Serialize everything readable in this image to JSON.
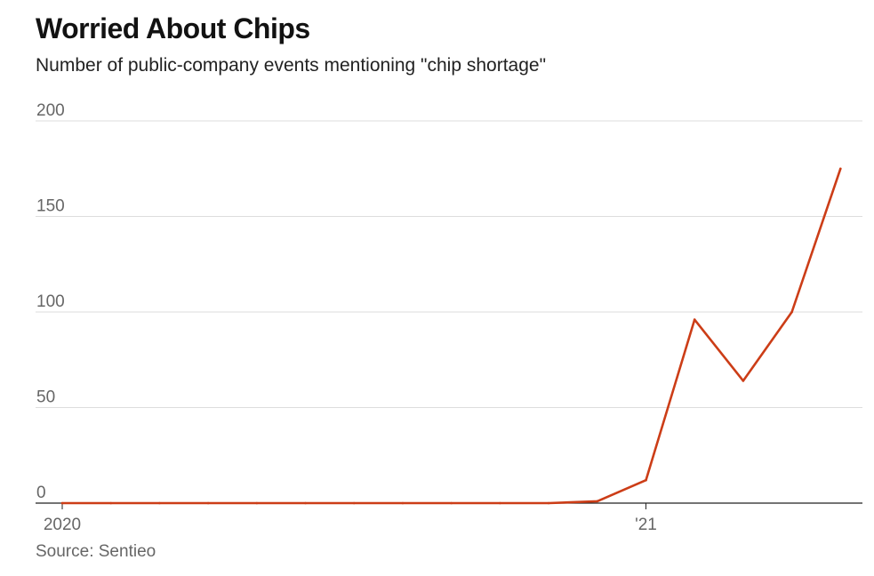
{
  "header": {
    "title": "Worried About Chips",
    "subtitle": "Number of public-company events mentioning \"chip shortage\""
  },
  "footer": {
    "source": "Source: Sentieo"
  },
  "colors": {
    "line": "#cc3d17",
    "grid": "#dddddd",
    "axis": "#222222",
    "tick_text": "#666666"
  },
  "chart_data": {
    "type": "line",
    "title": "Worried About Chips",
    "subtitle": "Number of public-company events mentioning \"chip shortage\"",
    "xlabel": "",
    "ylabel": "",
    "ylim": [
      0,
      200
    ],
    "yticks": [
      {
        "value": 0,
        "label": "0"
      },
      {
        "value": 50,
        "label": "50"
      },
      {
        "value": 100,
        "label": "100"
      },
      {
        "value": 150,
        "label": "150"
      },
      {
        "value": 200,
        "label": "200"
      }
    ],
    "x_time_unit": "month",
    "xlim": [
      "2019-12-15",
      "2021-05-15"
    ],
    "xticks": [
      {
        "value": "2020-01",
        "label": "2020"
      },
      {
        "value": "2021-01",
        "label": "'21"
      }
    ],
    "grid": true,
    "series": [
      {
        "x": [
          "2020-01",
          "2020-02",
          "2020-03",
          "2020-04",
          "2020-05",
          "2020-06",
          "2020-07",
          "2020-08",
          "2020-09",
          "2020-10",
          "2020-11",
          "2020-12",
          "2021-01",
          "2021-02",
          "2021-03",
          "2021-04",
          "2021-05"
        ],
        "values": [
          0,
          0,
          0,
          0,
          0,
          0,
          0,
          0,
          0,
          0,
          0,
          1,
          12,
          96,
          64,
          100,
          175
        ]
      }
    ]
  }
}
